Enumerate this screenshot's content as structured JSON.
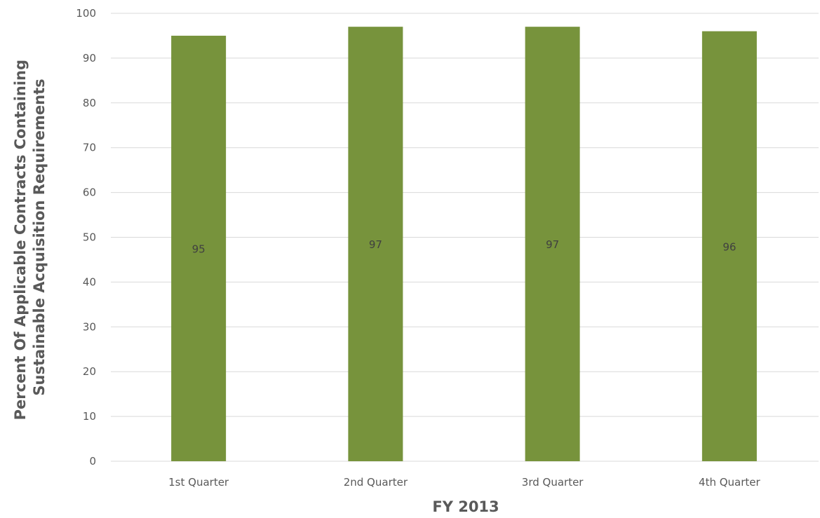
{
  "chart_data": {
    "type": "bar",
    "categories": [
      "1st Quarter",
      "2nd Quarter",
      "3rd Quarter",
      "4th Quarter"
    ],
    "series": [
      {
        "values": [
          95,
          97,
          97,
          96
        ],
        "color": "#77933c"
      }
    ],
    "data_labels": [
      "95",
      "97",
      "97",
      "96"
    ],
    "title": "",
    "xlabel": "FY 2013",
    "ylabel_lines": [
      "Percent Of Applicable Contracts Containing",
      "Sustainable Acquisition Requirements"
    ],
    "ylim": [
      0,
      100
    ],
    "yticks": [
      0,
      10,
      20,
      30,
      40,
      50,
      60,
      70,
      80,
      90,
      100
    ],
    "grid": true,
    "legend": "none",
    "gridline_color": "#d9d9d9"
  }
}
